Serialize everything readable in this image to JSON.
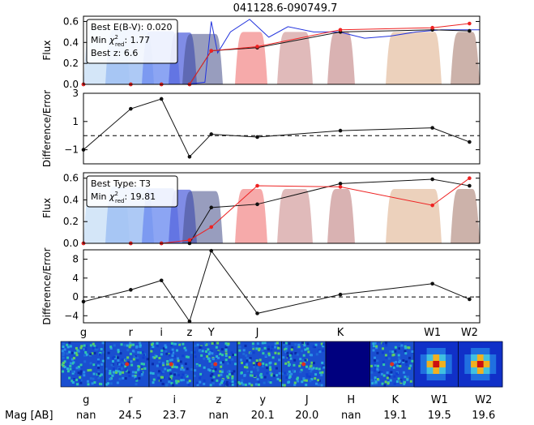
{
  "title": "041128.6-090749.7",
  "bands": [
    "g",
    "r",
    "i",
    "z",
    "Y",
    "J",
    "K",
    "W1",
    "W2"
  ],
  "bottom": {
    "row_label": "Mag [AB]",
    "filters": [
      "g",
      "r",
      "i",
      "z",
      "y",
      "J",
      "H",
      "K",
      "W1",
      "W2"
    ],
    "mags": [
      "nan",
      "24.5",
      "23.7",
      "nan",
      "20.1",
      "20.0",
      "nan",
      "19.1",
      "19.5",
      "19.6"
    ]
  },
  "colors": {
    "model_blue": "#2233dd",
    "model_red": "#ee2222",
    "obs_black": "#111111",
    "filter_blue": "#3355ee",
    "filter_red": "#ee5555",
    "filter_brown": "#996655"
  },
  "chart_data": [
    {
      "type": "line",
      "panel": "sed-dwarf",
      "ylabel": "Flux",
      "ylim": [
        0,
        0.65
      ],
      "yticks": [
        "0.0",
        "0.2",
        "0.4",
        "0.6"
      ],
      "legend": {
        "line1": "Best E(B-V): 0.020",
        "line2a": "Min ",
        "chi_sym": "χ",
        "chi_sup": "2",
        "chi_sub": "red",
        "line2b": ": 1.77",
        "line3": "Best z: 6.6"
      },
      "series": [
        {
          "name": "observed",
          "color": "#111111",
          "x": [
            0,
            0.37,
            0.61,
            0.83,
            1.0,
            1.36,
            2.01,
            2.73,
            3.02
          ],
          "y": [
            0.0,
            0.0,
            0.0,
            0.0,
            0.32,
            0.35,
            0.5,
            0.52,
            0.51
          ]
        },
        {
          "name": "model",
          "color": "#ee2222",
          "x": [
            0,
            0.37,
            0.61,
            0.83,
            1.0,
            1.36,
            2.01,
            2.73,
            3.02
          ],
          "y": [
            0.0,
            0.0,
            0.0,
            0.0,
            0.32,
            0.36,
            0.52,
            0.54,
            0.58
          ]
        }
      ]
    },
    {
      "type": "line",
      "panel": "resid-dwarf",
      "ylabel": "Difference/Error",
      "ylim": [
        -2.0,
        3.0
      ],
      "yticks": [
        "3",
        "1",
        "−1"
      ],
      "x": [
        0,
        0.37,
        0.61,
        0.83,
        1.0,
        1.36,
        2.01,
        2.73,
        3.02
      ],
      "y": [
        -1.0,
        1.9,
        2.6,
        -1.5,
        0.1,
        -0.1,
        0.35,
        0.55,
        -0.45
      ]
    },
    {
      "type": "line",
      "panel": "sed-brown",
      "ylabel": "Flux",
      "ylim": [
        0,
        0.65
      ],
      "yticks": [
        "0.0",
        "0.2",
        "0.4",
        "0.6"
      ],
      "legend": {
        "line1": "Best Type: T3",
        "line2a": "Min ",
        "chi_sym": "χ",
        "chi_sup": "2",
        "chi_sub": "red",
        "line2b": ": 19.81"
      },
      "series": [
        {
          "name": "observed",
          "color": "#111111",
          "x": [
            0,
            0.37,
            0.61,
            0.83,
            1.0,
            1.36,
            2.01,
            2.73,
            3.02
          ],
          "y": [
            0.0,
            0.0,
            0.0,
            0.0,
            0.33,
            0.36,
            0.55,
            0.59,
            0.53
          ]
        },
        {
          "name": "model",
          "color": "#ee2222",
          "x": [
            0,
            0.37,
            0.61,
            0.83,
            1.0,
            1.36,
            2.01,
            2.73,
            3.02
          ],
          "y": [
            0.0,
            0.0,
            0.0,
            0.03,
            0.15,
            0.53,
            0.52,
            0.35,
            0.6
          ]
        }
      ]
    },
    {
      "type": "line",
      "panel": "resid-brown",
      "ylabel": "Difference/Error",
      "ylim": [
        -5.5,
        10
      ],
      "yticks": [
        "8",
        "4",
        "0",
        "−4"
      ],
      "x": [
        0,
        0.37,
        0.61,
        0.83,
        1.0,
        1.36,
        2.01,
        2.73,
        3.02
      ],
      "y": [
        -1.0,
        1.5,
        3.5,
        -5.2,
        9.8,
        -3.5,
        0.5,
        2.8,
        -0.5
      ]
    }
  ]
}
